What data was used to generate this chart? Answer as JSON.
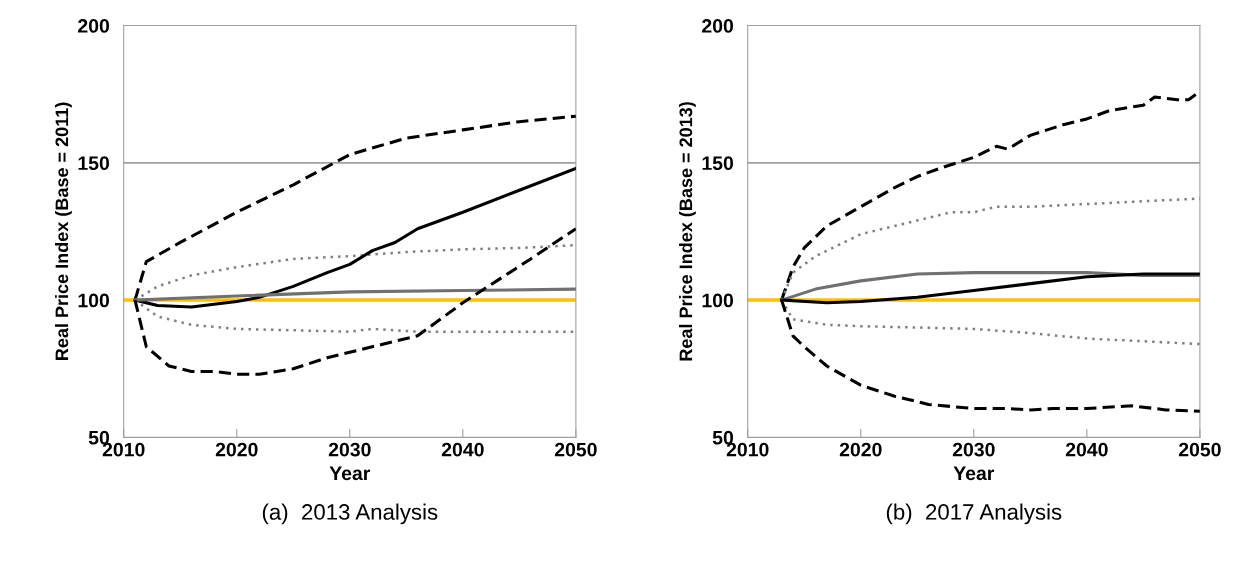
{
  "chart_data": [
    {
      "type": "line",
      "title": "(a)  2013 Analysis",
      "xlabel": "Year",
      "ylabel": "Real Price Index (Base = 2011)",
      "xlim": [
        2010,
        2050
      ],
      "xticks": [
        2010,
        2020,
        2030,
        2040,
        2050
      ],
      "ylim": [
        50,
        200
      ],
      "yticks": [
        50,
        100,
        150,
        200
      ],
      "legend": false,
      "ref_lines": [
        {
          "axis": "y",
          "value": 150,
          "color": "#a0a0a0",
          "line_style": "solid"
        },
        {
          "axis": "y",
          "value": 100,
          "color": "#ffc000",
          "line_style": "solid"
        }
      ],
      "series": [
        {
          "color": "#000000",
          "line_style": "dashed",
          "x": [
            2011,
            2012,
            2015,
            2020,
            2025,
            2030,
            2035,
            2040,
            2045,
            2050
          ],
          "values": [
            100,
            114,
            121,
            132,
            142,
            153,
            159,
            162,
            165,
            167
          ]
        },
        {
          "color": "#808080",
          "line_style": "dotted",
          "x": [
            2011,
            2013,
            2016,
            2020,
            2025,
            2030,
            2035,
            2040,
            2045,
            2050
          ],
          "values": [
            100,
            105,
            109,
            112,
            115,
            116,
            117.5,
            118.5,
            119,
            120
          ]
        },
        {
          "color": "#000000",
          "line_style": "solid",
          "x": [
            2011,
            2013,
            2016,
            2020,
            2022,
            2025,
            2028,
            2030,
            2032,
            2034,
            2036,
            2040,
            2045,
            2050
          ],
          "values": [
            100,
            98,
            97.5,
            99.5,
            101,
            105,
            110,
            113,
            118,
            121,
            126,
            132,
            140,
            148
          ]
        },
        {
          "color": "#707070",
          "line_style": "solid",
          "x": [
            2011,
            2020,
            2030,
            2040,
            2050
          ],
          "values": [
            100,
            101.5,
            103,
            103.5,
            104
          ]
        },
        {
          "color": "#808080",
          "line_style": "dotted",
          "x": [
            2011,
            2013,
            2016,
            2020,
            2025,
            2030,
            2032,
            2036,
            2040,
            2050
          ],
          "values": [
            100,
            94,
            91,
            89.5,
            89,
            88.5,
            89.5,
            88.5,
            88.5,
            88.5
          ]
        },
        {
          "color": "#000000",
          "line_style": "dashed",
          "x": [
            2011,
            2012,
            2014,
            2016,
            2018,
            2020,
            2022,
            2025,
            2028,
            2030,
            2033,
            2036,
            2038,
            2040,
            2043,
            2046,
            2050
          ],
          "values": [
            100,
            83,
            76,
            74,
            74,
            73,
            73,
            75,
            79,
            81,
            84,
            87,
            93,
            99,
            107,
            115,
            126
          ]
        }
      ]
    },
    {
      "type": "line",
      "title": "(b)  2017 Analysis",
      "xlabel": "Year",
      "ylabel": "Real Price Index (Base = 2013)",
      "xlim": [
        2010,
        2050
      ],
      "xticks": [
        2010,
        2020,
        2030,
        2040,
        2050
      ],
      "ylim": [
        50,
        200
      ],
      "yticks": [
        50,
        100,
        150,
        200
      ],
      "legend": false,
      "ref_lines": [
        {
          "axis": "y",
          "value": 150,
          "color": "#a0a0a0",
          "line_style": "solid"
        },
        {
          "axis": "y",
          "value": 100,
          "color": "#ffc000",
          "line_style": "solid"
        }
      ],
      "series": [
        {
          "color": "#000000",
          "line_style": "dashed",
          "x": [
            2013,
            2014,
            2015,
            2017,
            2020,
            2023,
            2025,
            2027,
            2030,
            2032,
            2033,
            2035,
            2038,
            2040,
            2042,
            2045,
            2046,
            2048,
            2049,
            2050
          ],
          "values": [
            100,
            112,
            119,
            127,
            134,
            141,
            145,
            148,
            152,
            156,
            155,
            160,
            164,
            166,
            169,
            171,
            174,
            173,
            173,
            176
          ]
        },
        {
          "color": "#808080",
          "line_style": "dotted",
          "x": [
            2013,
            2014,
            2016,
            2020,
            2025,
            2028,
            2030,
            2032,
            2035,
            2040,
            2045,
            2050
          ],
          "values": [
            100,
            110,
            116,
            124,
            129,
            132,
            132,
            134,
            134,
            135,
            136,
            137
          ]
        },
        {
          "color": "#707070",
          "line_style": "solid",
          "x": [
            2013,
            2016,
            2020,
            2025,
            2030,
            2040,
            2045,
            2050
          ],
          "values": [
            100,
            104,
            107,
            109.5,
            110,
            110,
            109,
            109
          ]
        },
        {
          "color": "#000000",
          "line_style": "solid",
          "x": [
            2013,
            2017,
            2020,
            2025,
            2030,
            2035,
            2040,
            2045,
            2050
          ],
          "values": [
            100,
            99,
            99.5,
            101,
            103.5,
            106,
            108.5,
            109.5,
            109.5
          ]
        },
        {
          "color": "#808080",
          "line_style": "dotted",
          "x": [
            2013,
            2014,
            2017,
            2020,
            2025,
            2030,
            2035,
            2040,
            2045,
            2050
          ],
          "values": [
            100,
            93,
            91,
            90.5,
            90,
            89.5,
            88,
            86,
            85,
            84
          ]
        },
        {
          "color": "#000000",
          "line_style": "dashed",
          "x": [
            2013,
            2014,
            2015,
            2017,
            2020,
            2023,
            2026,
            2030,
            2033,
            2035,
            2037,
            2040,
            2044,
            2047,
            2050
          ],
          "values": [
            100,
            87,
            83,
            76,
            69,
            65,
            62,
            60.5,
            60.5,
            60,
            60.5,
            60.5,
            61.5,
            60,
            59.5
          ]
        }
      ]
    }
  ]
}
